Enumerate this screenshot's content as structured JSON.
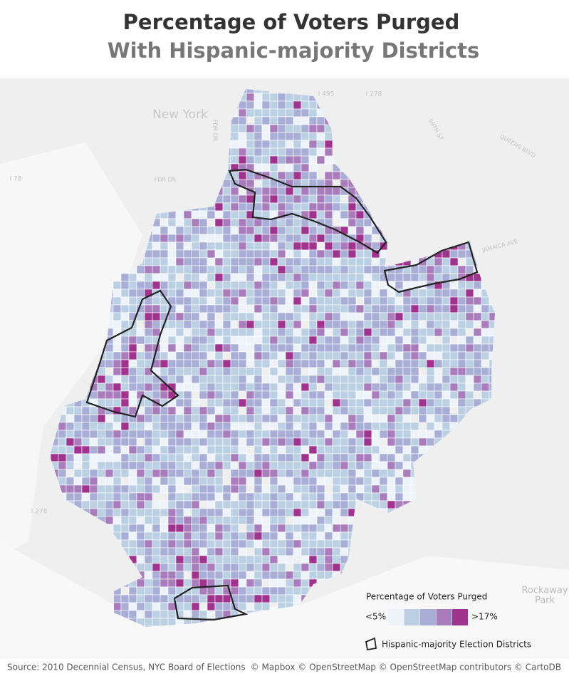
{
  "header": {
    "title": "Percentage of Voters Purged",
    "subtitle": "With Hispanic-majority Districts"
  },
  "map": {
    "place_labels": [
      "New York",
      "I 495",
      "I 278",
      "I 78",
      "FDR DR",
      "FDR DR",
      "QUEENS BLVD",
      "69TH ST",
      "JAMAICA AVE",
      "I 278",
      "Rockaway",
      "Park"
    ]
  },
  "legend": {
    "title": "Percentage of Voters Purged",
    "low_label": "<5%",
    "high_label": ">17%",
    "colors": [
      "#edf3f8",
      "#bcd0e4",
      "#a9aed6",
      "#a97cbb",
      "#a0338e"
    ],
    "outline_label": "Hispanic-majority Election Districts"
  },
  "footer": {
    "source": "Source: 2010 Decennial Census, NYC Board of Elections",
    "attribution": "© Mapbox © OpenStreetMap © OpenStreetMap contributors © CartoDB"
  }
}
